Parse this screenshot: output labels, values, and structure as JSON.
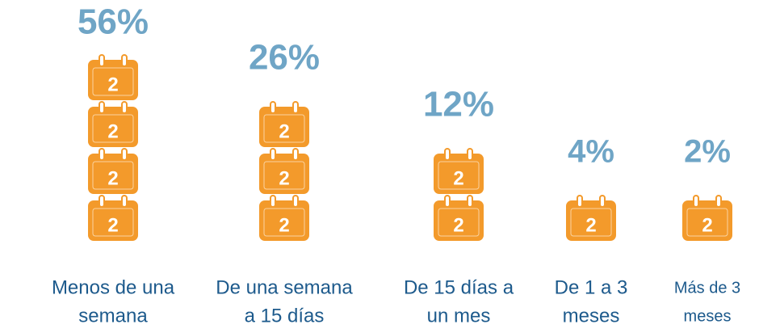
{
  "chart_data": {
    "type": "pictograph",
    "categories": [
      [
        "Menos de una",
        "semana"
      ],
      [
        "De una semana",
        "a 15 días"
      ],
      [
        "De 15 días a",
        "un mes"
      ],
      [
        "De 1 a 3",
        "meses"
      ],
      [
        "Más de 3",
        "meses"
      ]
    ],
    "values": [
      56,
      26,
      12,
      4,
      2
    ],
    "value_labels": [
      "56%",
      "26%",
      "12%",
      "4%",
      "2%"
    ],
    "icon_counts": [
      4,
      3,
      2,
      1,
      1
    ],
    "icon_text": "2",
    "color": "#f39a2b",
    "value_color": "#6fa5c6",
    "label_color": "#1d5a8c"
  }
}
